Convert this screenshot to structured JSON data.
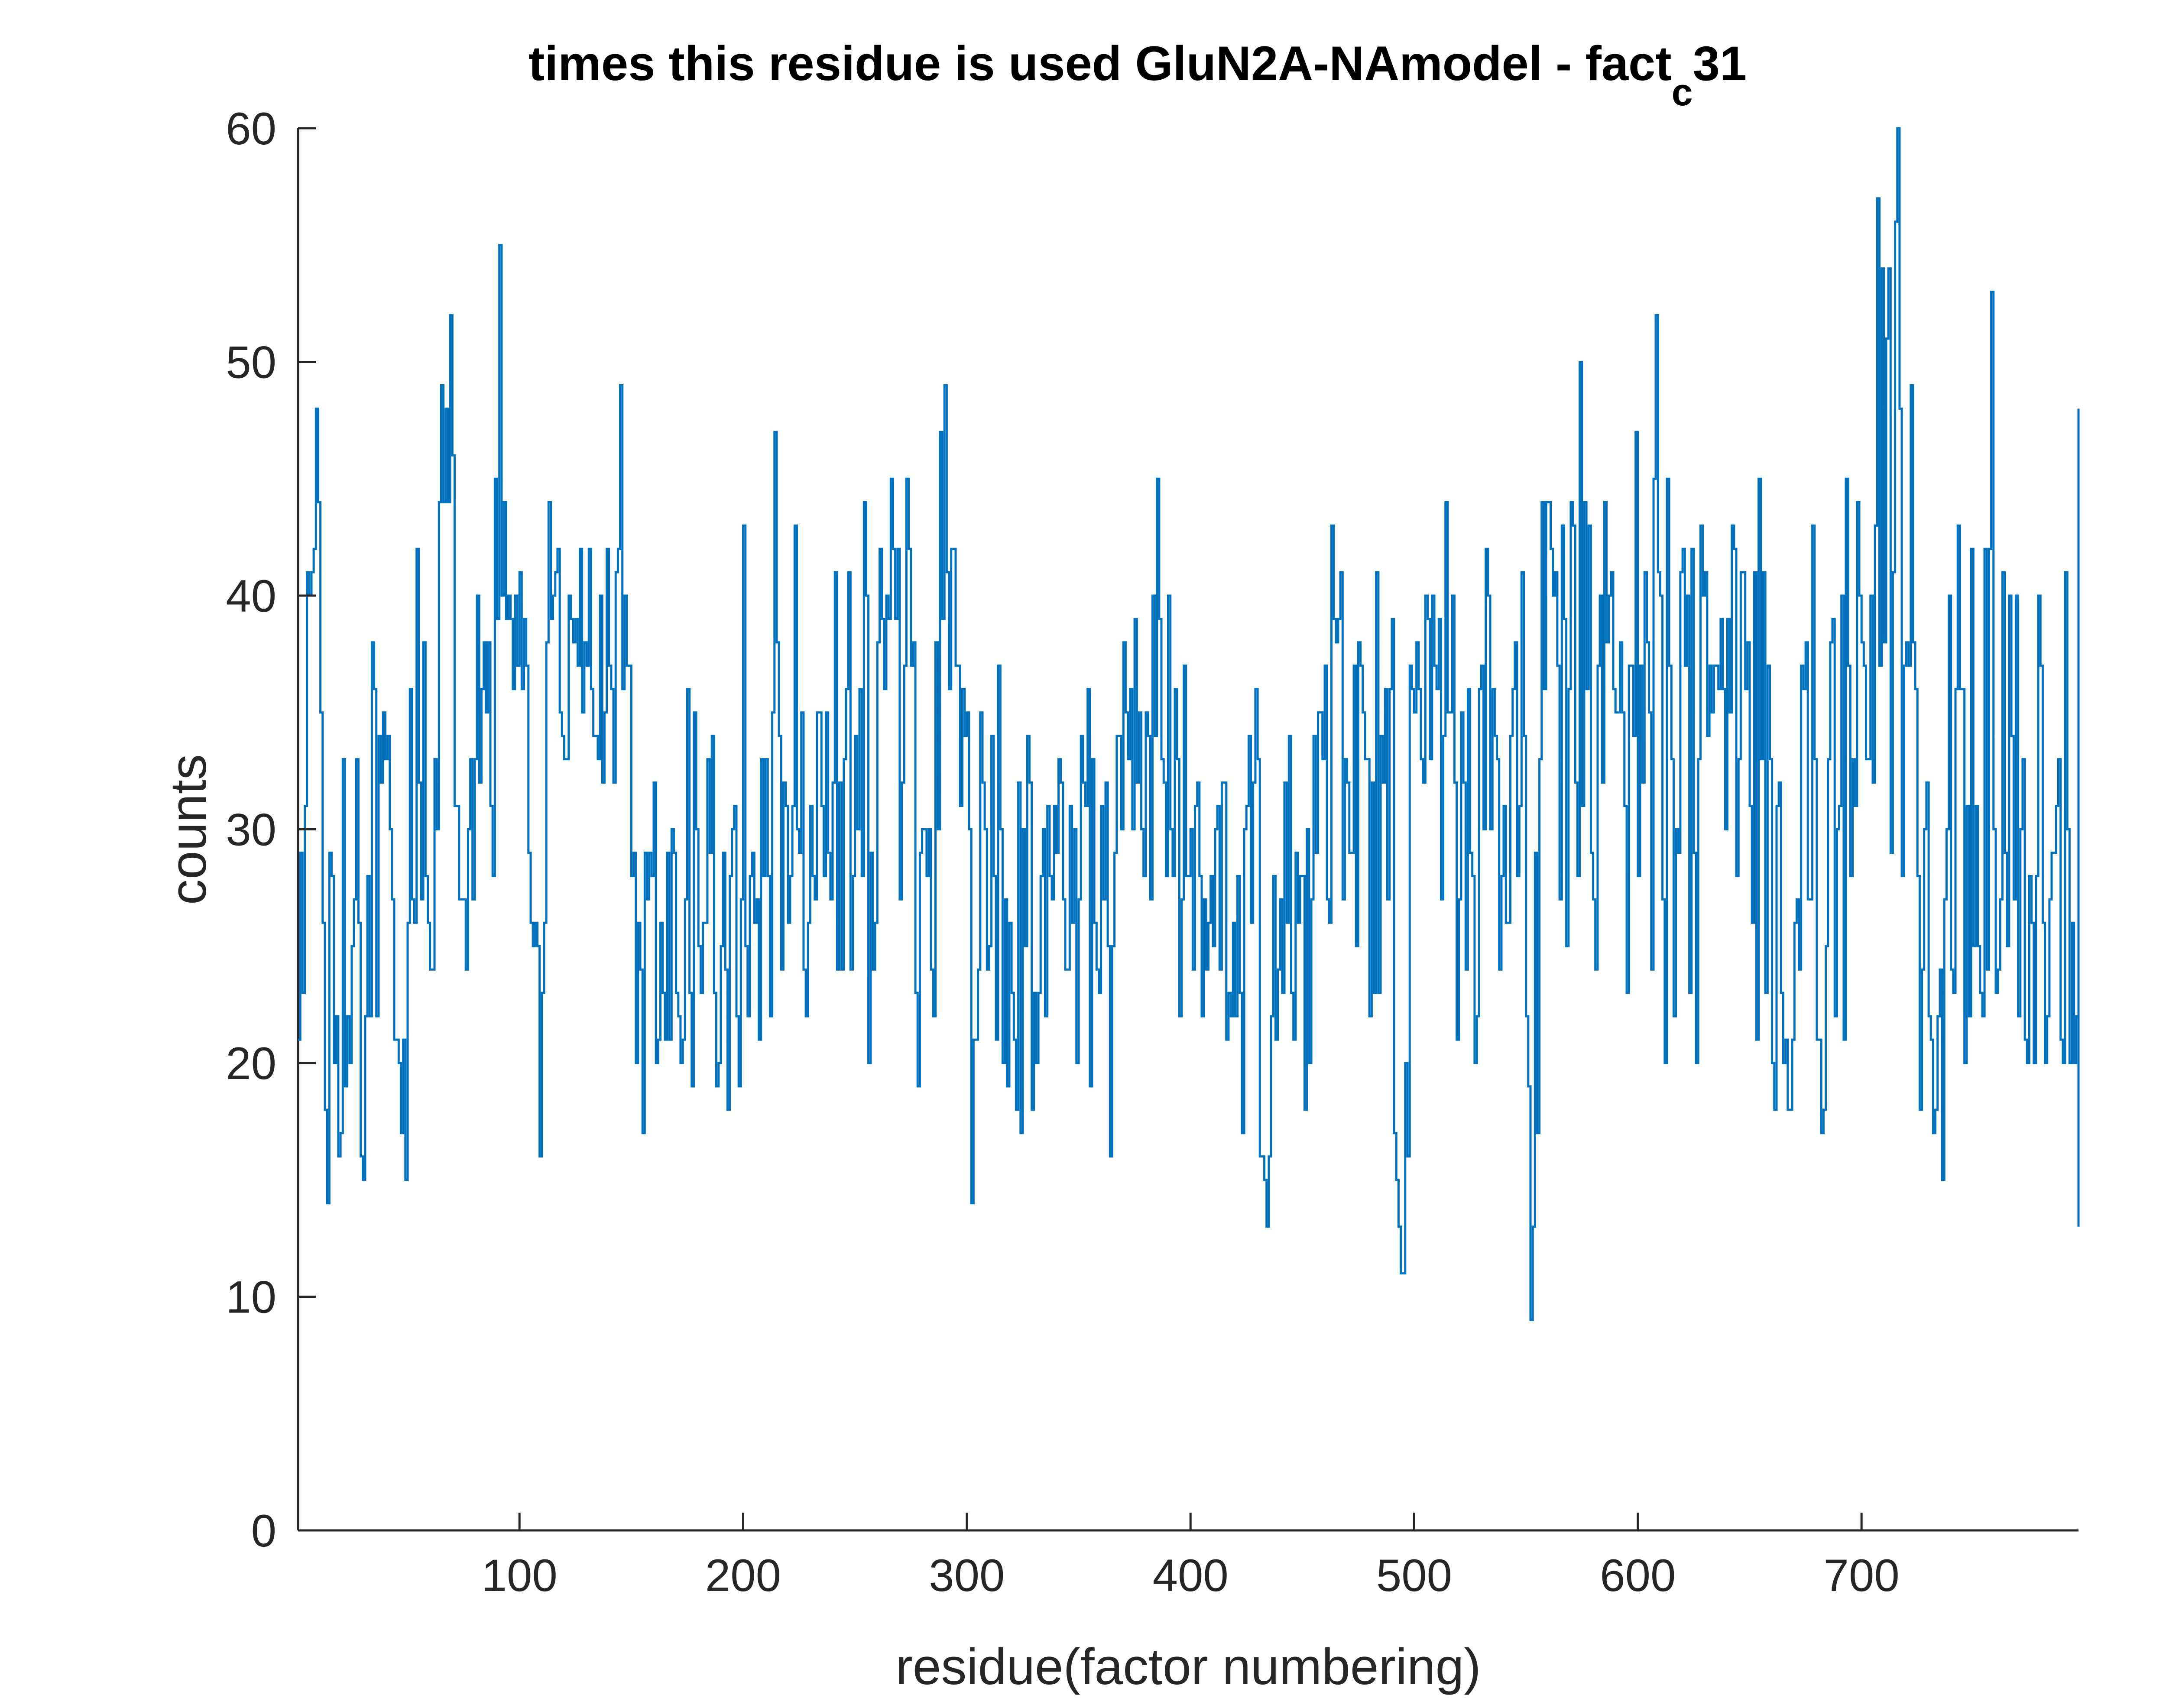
{
  "chart_data": {
    "type": "line",
    "title": "times this residue is used GluN2A-NAmodel - fact",
    "title_subscript": "c",
    "title_suffix": "31",
    "xlabel": "residue(factor numbering)",
    "ylabel": "counts",
    "xlim": [
      1,
      797
    ],
    "ylim": [
      0,
      60
    ],
    "xticks": [
      100,
      200,
      300,
      400,
      500,
      600,
      700
    ],
    "xtick_labels": [
      "100",
      "200",
      "300",
      "400",
      "500",
      "600",
      "700"
    ],
    "yticks": [
      0,
      10,
      20,
      30,
      40,
      50,
      60
    ],
    "ytick_labels": [
      "0",
      "10",
      "20",
      "30",
      "40",
      "50",
      "60"
    ],
    "grid": false,
    "legend": false,
    "line_style": "stairs",
    "colors": {
      "series": "#0072BD",
      "axis": "#262626",
      "background": "#ffffff"
    },
    "x_start": 1,
    "x_step": 1,
    "series": [
      {
        "values": [
          21,
          29,
          23,
          31,
          41,
          40,
          41,
          42,
          48,
          44,
          35,
          26,
          18,
          14,
          29,
          28,
          20,
          22,
          16,
          17,
          33,
          19,
          22,
          20,
          25,
          27,
          33,
          26,
          16,
          15,
          22,
          28,
          22,
          38,
          36,
          22,
          34,
          32,
          35,
          33,
          34,
          30,
          27,
          21,
          21,
          20,
          17,
          21,
          15,
          26,
          36,
          27,
          26,
          42,
          32,
          27,
          38,
          28,
          26,
          24,
          24,
          33,
          30,
          44,
          49,
          44,
          48,
          44,
          52,
          46,
          31,
          31,
          27,
          27,
          27,
          24,
          30,
          33,
          27,
          33,
          40,
          32,
          36,
          38,
          35,
          38,
          31,
          28,
          45,
          39,
          55,
          40,
          44,
          39,
          40,
          39,
          36,
          40,
          37,
          41,
          36,
          39,
          37,
          29,
          26,
          25,
          26,
          25,
          16,
          23,
          26,
          38,
          44,
          39,
          40,
          41,
          42,
          35,
          34,
          33,
          33,
          40,
          39,
          38,
          39,
          37,
          42,
          35,
          38,
          37,
          42,
          36,
          34,
          34,
          33,
          40,
          32,
          35,
          42,
          37,
          36,
          32,
          41,
          42,
          49,
          36,
          40,
          37,
          37,
          28,
          29,
          20,
          26,
          24,
          17,
          29,
          27,
          29,
          28,
          32,
          20,
          21,
          26,
          23,
          21,
          29,
          21,
          30,
          29,
          23,
          22,
          20,
          21,
          27,
          36,
          23,
          19,
          35,
          30,
          25,
          23,
          26,
          26,
          33,
          29,
          34,
          23,
          19,
          20,
          25,
          29,
          24,
          18,
          28,
          30,
          31,
          22,
          19,
          27,
          43,
          25,
          22,
          28,
          29,
          26,
          27,
          21,
          33,
          28,
          33,
          28,
          22,
          35,
          47,
          38,
          34,
          24,
          32,
          31,
          26,
          28,
          31,
          43,
          30,
          29,
          35,
          24,
          22,
          26,
          31,
          28,
          27,
          35,
          35,
          31,
          28,
          35,
          29,
          27,
          32,
          41,
          24,
          32,
          24,
          33,
          36,
          41,
          24,
          28,
          34,
          30,
          36,
          28,
          44,
          40,
          20,
          29,
          24,
          26,
          38,
          42,
          39,
          36,
          40,
          39,
          45,
          42,
          39,
          42,
          27,
          32,
          37,
          45,
          42,
          37,
          38,
          23,
          19,
          29,
          30,
          30,
          28,
          30,
          24,
          22,
          38,
          30,
          47,
          39,
          49,
          41,
          36,
          42,
          42,
          37,
          37,
          31,
          36,
          34,
          35,
          30,
          14,
          21,
          21,
          24,
          35,
          32,
          30,
          24,
          25,
          34,
          28,
          21,
          37,
          30,
          20,
          27,
          19,
          26,
          23,
          21,
          18,
          32,
          17,
          30,
          25,
          34,
          32,
          18,
          23,
          20,
          23,
          28,
          30,
          22,
          31,
          28,
          27,
          31,
          29,
          33,
          32,
          27,
          24,
          24,
          31,
          26,
          30,
          20,
          27,
          34,
          32,
          31,
          36,
          19,
          33,
          26,
          24,
          23,
          31,
          27,
          32,
          25,
          16,
          25,
          29,
          34,
          34,
          30,
          38,
          35,
          33,
          36,
          30,
          39,
          32,
          35,
          30,
          28,
          35,
          34,
          27,
          40,
          34,
          45,
          39,
          33,
          32,
          28,
          40,
          30,
          28,
          36,
          33,
          22,
          27,
          37,
          28,
          28,
          30,
          24,
          31,
          32,
          28,
          22,
          27,
          24,
          26,
          28,
          25,
          30,
          31,
          24,
          32,
          32,
          21,
          23,
          22,
          26,
          22,
          28,
          23,
          17,
          30,
          31,
          34,
          26,
          32,
          36,
          33,
          16,
          16,
          15,
          13,
          16,
          22,
          28,
          21,
          24,
          27,
          23,
          32,
          26,
          34,
          23,
          21,
          29,
          26,
          28,
          28,
          18,
          30,
          20,
          27,
          34,
          29,
          35,
          35,
          33,
          37,
          27,
          26,
          43,
          39,
          38,
          39,
          41,
          27,
          33,
          32,
          29,
          29,
          37,
          25,
          38,
          37,
          35,
          33,
          33,
          22,
          32,
          23,
          41,
          23,
          34,
          32,
          36,
          27,
          36,
          39,
          17,
          15,
          13,
          11,
          11,
          20,
          16,
          37,
          36,
          35,
          38,
          36,
          33,
          32,
          40,
          39,
          33,
          40,
          37,
          36,
          39,
          27,
          34,
          44,
          35,
          35,
          40,
          32,
          21,
          27,
          35,
          32,
          24,
          36,
          29,
          28,
          20,
          22,
          36,
          37,
          30,
          42,
          40,
          30,
          36,
          34,
          33,
          24,
          28,
          31,
          26,
          26,
          34,
          36,
          38,
          28,
          31,
          41,
          34,
          22,
          19,
          9,
          13,
          29,
          17,
          33,
          44,
          36,
          44,
          44,
          42,
          40,
          41,
          37,
          27,
          43,
          39,
          25,
          36,
          44,
          43,
          32,
          28,
          50,
          31,
          44,
          36,
          43,
          29,
          27,
          24,
          37,
          40,
          32,
          44,
          38,
          40,
          41,
          36,
          35,
          35,
          38,
          35,
          31,
          23,
          37,
          37,
          34,
          47,
          28,
          37,
          32,
          41,
          38,
          35,
          24,
          45,
          52,
          41,
          40,
          27,
          20,
          45,
          37,
          33,
          22,
          30,
          29,
          41,
          42,
          37,
          40,
          23,
          42,
          29,
          20,
          33,
          43,
          40,
          41,
          34,
          37,
          35,
          37,
          37,
          36,
          39,
          36,
          30,
          39,
          35,
          43,
          42,
          28,
          33,
          41,
          41,
          36,
          38,
          31,
          26,
          41,
          21,
          45,
          33,
          41,
          23,
          37,
          33,
          20,
          18,
          31,
          32,
          23,
          20,
          21,
          18,
          18,
          21,
          26,
          27,
          24,
          37,
          36,
          38,
          27,
          27,
          43,
          33,
          21,
          21,
          17,
          18,
          25,
          33,
          38,
          39,
          22,
          30,
          31,
          40,
          21,
          45,
          37,
          28,
          33,
          31,
          44,
          40,
          38,
          37,
          33,
          33,
          40,
          32,
          43,
          57,
          37,
          54,
          38,
          51,
          54,
          29,
          41,
          56,
          60,
          48,
          28,
          37,
          38,
          37,
          49,
          38,
          36,
          28,
          18,
          24,
          30,
          32,
          22,
          21,
          17,
          18,
          22,
          24,
          15,
          27,
          30,
          40,
          24,
          23,
          36,
          43,
          36,
          36,
          20,
          31,
          22,
          42,
          25,
          31,
          25,
          23,
          22,
          42,
          24,
          42,
          53,
          30,
          23,
          24,
          27,
          41,
          29,
          25,
          40,
          34,
          27,
          40,
          22,
          30,
          33,
          21,
          20,
          28,
          26,
          20,
          28,
          40,
          37,
          26,
          20,
          22,
          27,
          29,
          29,
          31,
          33,
          21,
          20,
          41,
          30,
          20,
          26,
          20,
          22,
          24,
          33,
          21,
          21,
          15,
          16,
          14,
          14,
          17,
          17,
          20,
          29,
          21,
          19,
          32,
          23,
          24,
          19,
          31,
          20,
          20,
          19,
          31,
          33,
          28,
          24,
          28,
          22,
          20,
          34,
          21,
          20,
          24,
          31,
          19,
          32,
          20,
          32,
          23,
          24,
          26,
          30,
          31,
          26,
          20,
          19,
          36,
          35,
          36,
          37,
          48,
          31,
          31,
          24,
          26,
          33,
          28,
          22,
          39,
          34,
          43,
          35,
          40,
          48,
          37,
          44,
          39,
          32,
          27,
          28,
          34,
          43,
          28,
          20,
          37,
          38,
          34,
          24,
          26,
          20,
          17,
          28,
          23,
          29,
          35,
          29,
          34,
          48,
          32,
          38,
          42,
          36,
          24,
          40,
          34,
          34,
          40,
          41,
          27,
          28,
          22,
          20,
          30,
          29,
          24,
          22,
          17,
          21,
          22,
          27,
          20,
          20,
          27,
          18,
          35,
          34,
          35,
          24,
          21,
          25,
          26,
          19,
          27,
          26,
          28,
          23,
          30,
          16,
          16,
          17,
          26,
          23,
          28,
          28,
          25,
          26,
          32,
          32,
          23,
          25,
          22,
          22,
          18,
          23,
          34,
          30,
          25,
          27,
          34,
          27,
          33,
          27,
          30,
          25,
          24,
          31,
          34,
          32,
          31,
          21,
          17,
          24,
          19,
          32,
          22,
          27,
          28,
          20,
          28,
          29,
          31,
          28,
          25,
          27,
          28,
          18,
          29,
          30,
          26,
          27,
          34,
          30,
          32,
          34,
          30,
          35,
          32,
          29,
          27,
          29,
          32,
          27,
          32,
          30,
          29,
          28,
          22,
          28,
          27,
          28,
          31,
          27,
          28,
          27,
          27,
          28,
          27,
          27,
          27,
          27,
          24,
          24,
          24,
          24,
          22,
          21,
          20,
          20,
          19,
          18,
          17,
          16,
          16,
          14,
          13
        ]
      }
    ]
  }
}
